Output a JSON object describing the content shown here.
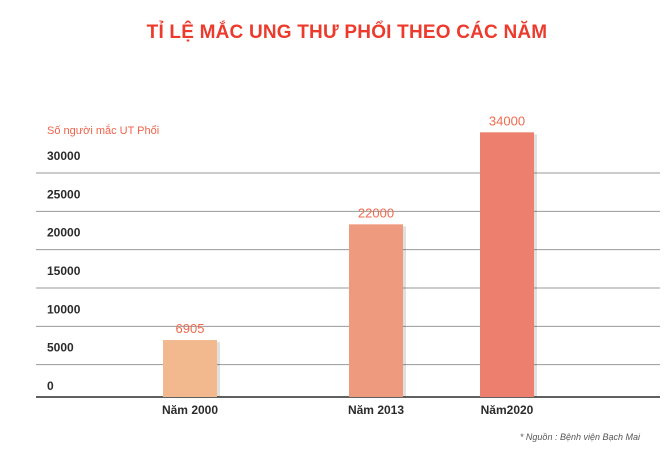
{
  "chart_data": {
    "type": "bar",
    "title": "TỈ LỆ MẮC UNG THƯ PHỔI THEO CÁC NĂM",
    "ylabel": "Số người mắc UT Phổi",
    "xlabel": "",
    "categories": [
      "Năm 2000",
      "Năm 2013",
      "Năm2020"
    ],
    "values": [
      6905,
      22000,
      34000
    ],
    "data_labels": [
      "6905",
      "22000",
      "34000"
    ],
    "yticks": [
      0,
      5000,
      10000,
      15000,
      20000,
      25000,
      30000
    ],
    "ylim": [
      0,
      35000
    ],
    "grid": true,
    "legend": "none",
    "bar_colors": [
      "#f2b98f",
      "#ee9a7e",
      "#ec7f6d"
    ],
    "source_note": "* Nguồn : Bệnh viện Bạch Mai"
  },
  "colors": {
    "title": "#ec3b2d",
    "label_accent": "#f0624a"
  }
}
